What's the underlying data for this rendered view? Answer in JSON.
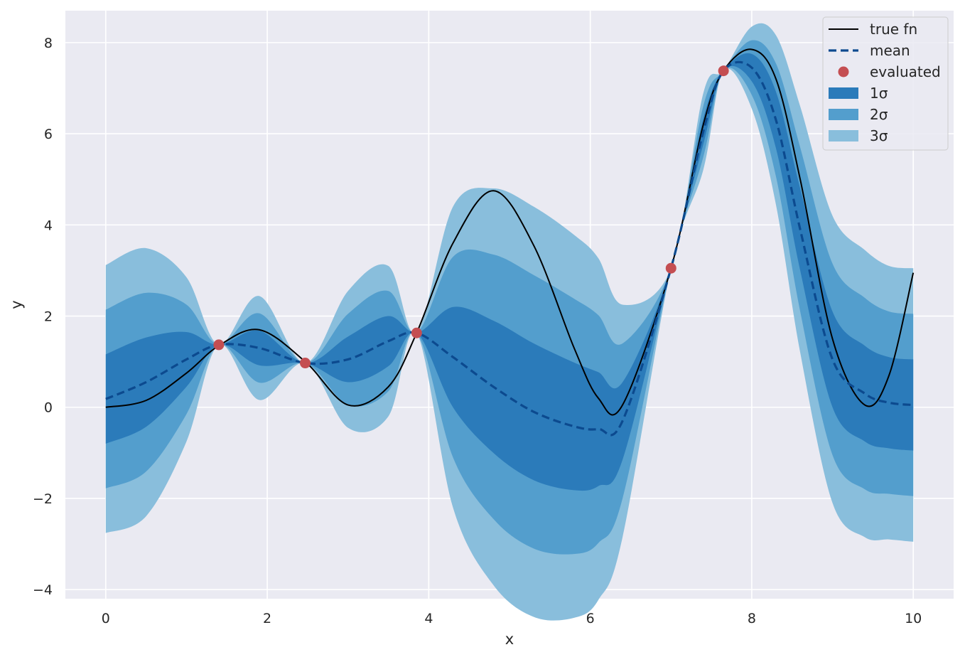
{
  "chart_data": {
    "type": "line",
    "title": "",
    "xlabel": "x",
    "ylabel": "y",
    "xlim": [
      -0.5,
      10.5
    ],
    "ylim": [
      -4.2,
      8.7
    ],
    "xticks": [
      0,
      2,
      4,
      6,
      8,
      10
    ],
    "yticks": [
      -4,
      -2,
      0,
      2,
      4,
      6,
      8
    ],
    "ytick_labels": [
      "−4",
      "−2",
      "0",
      "2",
      "4",
      "6",
      "8"
    ],
    "grid": true,
    "legend_position": "top-right",
    "colors": {
      "background": "#eaeaf2",
      "grid": "#ffffff",
      "true_fn": "#000000",
      "mean": "#0c4a8f",
      "evaluated": "#c44e52",
      "band_1sigma": "#2b7bba",
      "band_2sigma": "#539ecd",
      "band_3sigma": "#89bedc"
    },
    "x": [
      0,
      0.5,
      1.0,
      1.4,
      1.9,
      2.47,
      3.0,
      3.5,
      3.85,
      4.3,
      4.8,
      5.3,
      5.8,
      6.1,
      6.4,
      7.0,
      7.4,
      7.65,
      8.0,
      8.3,
      8.6,
      9.0,
      9.4,
      9.7,
      10.0
    ],
    "series": [
      {
        "name": "true fn",
        "style": "solid",
        "values": [
          0.0,
          0.15,
          0.75,
          1.35,
          1.7,
          1.0,
          0.05,
          0.45,
          1.63,
          3.6,
          4.75,
          3.55,
          1.3,
          0.2,
          0.05,
          3.05,
          6.2,
          7.38,
          7.85,
          7.2,
          5.0,
          1.5,
          0.05,
          0.7,
          2.95
        ]
      },
      {
        "name": "mean",
        "style": "dashed",
        "values": [
          0.18,
          0.55,
          1.05,
          1.37,
          1.3,
          0.97,
          1.05,
          1.45,
          1.63,
          1.1,
          0.45,
          -0.1,
          -0.42,
          -0.48,
          -0.3,
          3.05,
          6.05,
          7.38,
          7.45,
          6.3,
          3.9,
          1.05,
          0.3,
          0.1,
          0.05
        ]
      }
    ],
    "evaluated": {
      "name": "evaluated",
      "x": [
        1.4,
        2.47,
        3.85,
        7.0,
        7.65
      ],
      "y": [
        1.37,
        0.97,
        1.63,
        3.05,
        7.38
      ]
    },
    "sigma": [
      0.98,
      0.98,
      0.6,
      0.0,
      0.38,
      0.0,
      0.5,
      0.55,
      0.0,
      1.1,
      1.45,
      1.5,
      1.4,
      1.25,
      0.85,
      0.0,
      0.28,
      0.0,
      0.3,
      0.62,
      0.9,
      1.05,
      1.05,
      1.0,
      1.0
    ],
    "bands": [
      {
        "name": "1σ",
        "k": 1
      },
      {
        "name": "2σ",
        "k": 2
      },
      {
        "name": "3σ",
        "k": 3
      }
    ],
    "legend": [
      "true fn",
      "mean",
      "evaluated",
      "1σ",
      "2σ",
      "3σ"
    ]
  }
}
